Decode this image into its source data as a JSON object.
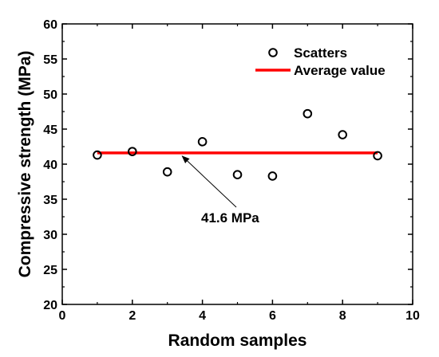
{
  "chart_data": {
    "type": "scatter",
    "xlabel": "Random samples",
    "ylabel": "Compressive strength (MPa)",
    "xlim": [
      0,
      10
    ],
    "ylim": [
      20,
      60
    ],
    "xticks": [
      0,
      2,
      4,
      6,
      8,
      10
    ],
    "yticks": [
      20,
      25,
      30,
      35,
      40,
      45,
      50,
      55,
      60
    ],
    "grid": false,
    "legend_position": "top-right",
    "series": [
      {
        "name": "Scatters",
        "kind": "scatter",
        "marker": "open-circle",
        "color": "#000000",
        "x": [
          1,
          2,
          3,
          4,
          5,
          6,
          7,
          8,
          9
        ],
        "y": [
          41.3,
          41.8,
          38.9,
          43.2,
          38.5,
          38.3,
          47.2,
          44.2,
          41.2
        ]
      },
      {
        "name": "Average value",
        "kind": "line",
        "color": "#ff0000",
        "x": [
          1,
          9
        ],
        "y": [
          41.6,
          41.6
        ]
      }
    ],
    "annotations": [
      {
        "text": "41.6 MPa",
        "target_x": 3.4,
        "target_y": 41.6
      }
    ]
  }
}
